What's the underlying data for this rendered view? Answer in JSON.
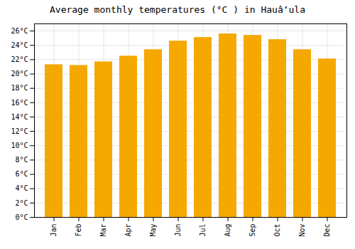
{
  "chart_data": {
    "type": "bar",
    "title": "Average monthly temperatures (°C ) in Hauâʻula",
    "categories": [
      "Jan",
      "Feb",
      "Mar",
      "Apr",
      "May",
      "Jun",
      "Jul",
      "Aug",
      "Sep",
      "Oct",
      "Nov",
      "Dec"
    ],
    "values": [
      21.3,
      21.2,
      21.7,
      22.5,
      23.4,
      24.6,
      25.1,
      25.6,
      25.4,
      24.8,
      23.4,
      22.1
    ],
    "color": "#F5A800",
    "ylim": [
      0,
      27
    ],
    "yticks": [
      {
        "value": 0,
        "label": "0°C"
      },
      {
        "value": 2,
        "label": "2°C"
      },
      {
        "value": 4,
        "label": "4°C"
      },
      {
        "value": 6,
        "label": "6°C"
      },
      {
        "value": 8,
        "label": "8°C"
      },
      {
        "value": 10,
        "label": "10°C"
      },
      {
        "value": 12,
        "label": "12°C"
      },
      {
        "value": 14,
        "label": "14°C"
      },
      {
        "value": 16,
        "label": "16°C"
      },
      {
        "value": 18,
        "label": "18°C"
      },
      {
        "value": 20,
        "label": "20°C"
      },
      {
        "value": 22,
        "label": "22°C"
      },
      {
        "value": 24,
        "label": "24°C"
      },
      {
        "value": 26,
        "label": "26°C"
      }
    ],
    "grid": true
  }
}
